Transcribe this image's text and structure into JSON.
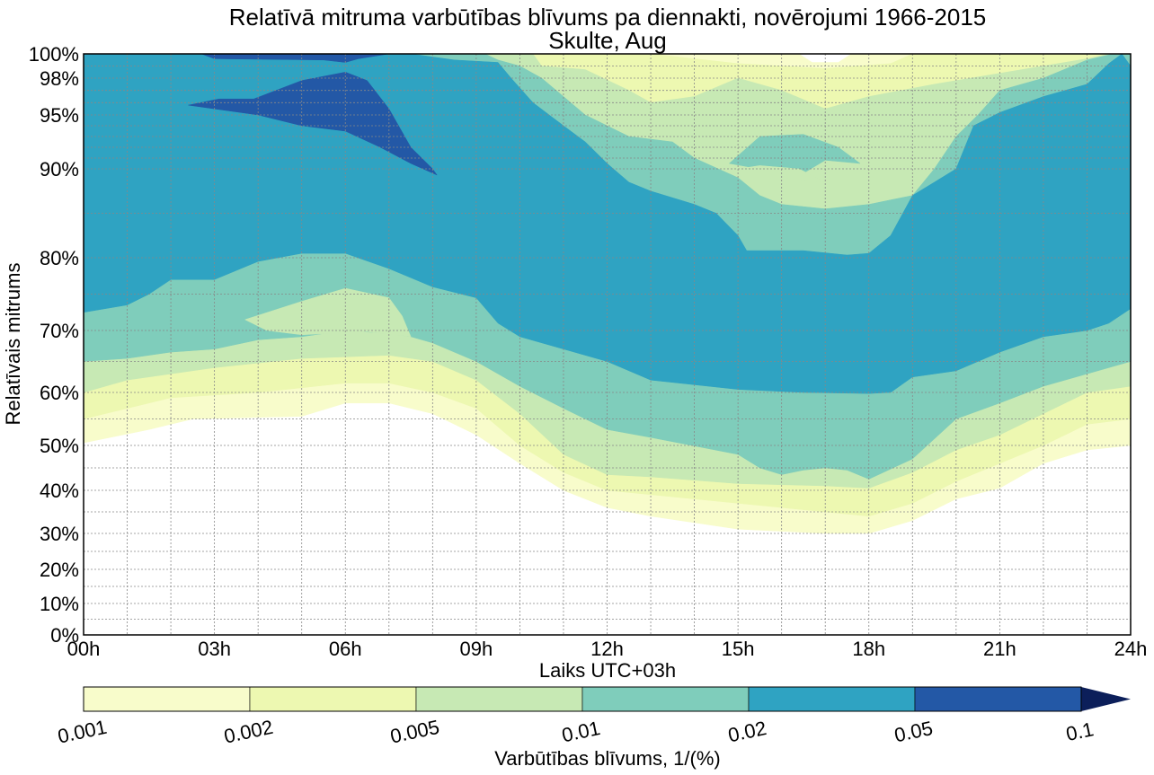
{
  "chart_data": {
    "type": "contourf",
    "title": "Relatīvā mitruma varbūtības blīvums pa diennakti, novērojumi 1966-2015",
    "subtitle": "Skulte, Aug",
    "xlabel": "Laiks UTC+03h",
    "ylabel": "Relatīvais mitrums",
    "xlim": [
      0,
      24
    ],
    "ylim": [
      0,
      100
    ],
    "x_ticks": [
      {
        "value": 0,
        "label": "00h"
      },
      {
        "value": 3,
        "label": "03h"
      },
      {
        "value": 6,
        "label": "06h"
      },
      {
        "value": 9,
        "label": "09h"
      },
      {
        "value": 12,
        "label": "12h"
      },
      {
        "value": 15,
        "label": "15h"
      },
      {
        "value": 18,
        "label": "18h"
      },
      {
        "value": 21,
        "label": "21h"
      },
      {
        "value": 24,
        "label": "24h"
      }
    ],
    "y_ticks": [
      {
        "value": 0,
        "label": "0%"
      },
      {
        "value": 10,
        "label": "10%"
      },
      {
        "value": 20,
        "label": "20%"
      },
      {
        "value": 30,
        "label": "30%"
      },
      {
        "value": 40,
        "label": "40%"
      },
      {
        "value": 50,
        "label": "50%"
      },
      {
        "value": 60,
        "label": "60%"
      },
      {
        "value": 70,
        "label": "70%"
      },
      {
        "value": 80,
        "label": "80%"
      },
      {
        "value": 90,
        "label": "90%"
      },
      {
        "value": 95,
        "label": "95%"
      },
      {
        "value": 98,
        "label": "98%"
      },
      {
        "value": 100,
        "label": "100%"
      }
    ],
    "grid": true,
    "colorbar": {
      "label": "Varbūtības blīvums, 1/(%)",
      "levels": [
        "0.001",
        "0.002",
        "0.005",
        "0.01",
        "0.02",
        "0.05",
        "0.1"
      ],
      "colors": [
        "#f8fccb",
        "#edf8b1",
        "#c7e9b4",
        "#7fcdbb",
        "#2fa3c2",
        "#2358a6"
      ],
      "extend_color": "#0c1f5a",
      "placement": "bottom"
    },
    "regions": [
      {
        "level": 0,
        "points": [
          [
            0,
            50.5
          ],
          [
            1.5,
            53
          ],
          [
            2.5,
            55
          ],
          [
            5,
            55.5
          ],
          [
            6,
            58
          ],
          [
            7,
            58
          ],
          [
            8,
            56
          ],
          [
            9,
            52
          ],
          [
            10,
            46
          ],
          [
            11,
            40
          ],
          [
            12,
            36
          ],
          [
            13,
            34
          ],
          [
            15,
            31
          ],
          [
            17,
            30
          ],
          [
            18,
            30
          ],
          [
            19,
            33
          ],
          [
            20,
            38
          ],
          [
            21,
            40.5
          ],
          [
            22,
            46
          ],
          [
            23,
            49
          ],
          [
            24,
            50
          ],
          [
            24,
            100
          ],
          [
            17.6,
            100
          ],
          [
            17.3,
            99.3
          ],
          [
            16.7,
            99.3
          ],
          [
            16.4,
            100
          ],
          [
            0,
            100
          ]
        ]
      },
      {
        "level": 1,
        "points": [
          [
            0,
            55
          ],
          [
            1,
            57
          ],
          [
            2,
            59
          ],
          [
            4,
            60
          ],
          [
            6,
            61.5
          ],
          [
            7,
            61.5
          ],
          [
            8,
            60
          ],
          [
            9,
            57
          ],
          [
            10,
            50
          ],
          [
            11,
            44
          ],
          [
            12,
            40
          ],
          [
            13,
            39
          ],
          [
            15,
            37
          ],
          [
            17,
            35
          ],
          [
            18,
            34
          ],
          [
            19,
            37
          ],
          [
            20,
            42
          ],
          [
            21,
            46
          ],
          [
            22,
            50
          ],
          [
            23,
            54
          ],
          [
            24,
            55
          ],
          [
            24,
            100
          ],
          [
            19,
            100
          ],
          [
            18.5,
            99.2
          ],
          [
            17,
            98.8
          ],
          [
            15,
            99.2
          ],
          [
            13,
            100
          ],
          [
            0,
            100
          ]
        ]
      },
      {
        "level": 2,
        "points": [
          [
            0,
            60
          ],
          [
            1,
            62
          ],
          [
            3,
            64
          ],
          [
            5,
            65.5
          ],
          [
            7,
            66
          ],
          [
            8,
            65
          ],
          [
            9,
            62
          ],
          [
            10,
            56
          ],
          [
            11,
            48
          ],
          [
            12,
            43.5
          ],
          [
            13,
            43
          ],
          [
            15,
            41.5
          ],
          [
            17,
            41
          ],
          [
            18,
            40.5
          ],
          [
            19,
            44
          ],
          [
            20,
            49
          ],
          [
            21,
            52
          ],
          [
            22,
            56
          ],
          [
            23,
            60
          ],
          [
            24,
            61
          ],
          [
            24,
            100
          ],
          [
            23.5,
            100
          ],
          [
            23,
            99.6
          ],
          [
            22,
            99
          ],
          [
            19.5,
            97.5
          ],
          [
            18,
            96.5
          ],
          [
            17,
            95.5
          ],
          [
            16,
            97
          ],
          [
            15,
            98
          ],
          [
            14,
            96.5
          ],
          [
            13,
            96
          ],
          [
            12.5,
            97
          ],
          [
            11.5,
            98.7
          ],
          [
            10.5,
            99
          ],
          [
            10.3,
            100
          ],
          [
            0,
            100
          ]
        ]
      },
      {
        "level": 3,
        "points": [
          [
            0,
            65
          ],
          [
            1,
            65.5
          ],
          [
            2,
            66.5
          ],
          [
            3,
            67
          ],
          [
            4,
            68.5
          ],
          [
            5,
            69
          ],
          [
            6,
            70
          ],
          [
            7,
            69.5
          ],
          [
            7.5,
            69
          ],
          [
            8,
            68
          ],
          [
            9,
            65
          ],
          [
            10,
            61
          ],
          [
            11,
            57
          ],
          [
            12,
            53
          ],
          [
            13,
            51.5
          ],
          [
            15,
            48
          ],
          [
            15.5,
            45
          ],
          [
            16,
            43.5
          ],
          [
            16.5,
            44.5
          ],
          [
            17,
            45
          ],
          [
            17.5,
            44.5
          ],
          [
            18,
            42.5
          ],
          [
            19,
            47
          ],
          [
            20,
            55
          ],
          [
            21,
            58
          ],
          [
            22,
            61
          ],
          [
            23,
            63
          ],
          [
            24,
            65
          ],
          [
            24,
            100
          ],
          [
            23.6,
            100
          ],
          [
            23,
            99.5
          ],
          [
            22,
            98
          ],
          [
            21,
            97
          ],
          [
            20.5,
            95
          ],
          [
            20,
            93
          ],
          [
            19.5,
            90
          ],
          [
            19,
            87
          ],
          [
            18.5,
            86.5
          ],
          [
            18,
            86
          ],
          [
            17,
            85.5
          ],
          [
            16,
            86
          ],
          [
            15.5,
            87
          ],
          [
            15,
            89
          ],
          [
            14,
            91
          ],
          [
            13.5,
            92.5
          ],
          [
            12.5,
            93
          ],
          [
            12,
            94
          ],
          [
            11.5,
            95
          ],
          [
            11,
            96.5
          ],
          [
            10.5,
            98
          ],
          [
            10,
            99
          ],
          [
            9.5,
            99.5
          ],
          [
            9.2,
            100
          ],
          [
            0,
            100
          ]
        ]
      },
      {
        "level": 2,
        "points": [
          [
            3.7,
            71.5
          ],
          [
            5,
            74
          ],
          [
            6,
            75.8
          ],
          [
            7,
            74.5
          ],
          [
            7.3,
            72
          ],
          [
            7.5,
            69
          ],
          [
            6.5,
            69.8
          ],
          [
            5,
            69.3
          ],
          [
            4.2,
            70
          ]
        ]
      },
      {
        "level": 3,
        "points": [
          [
            14.8,
            90.5
          ],
          [
            15.5,
            93
          ],
          [
            16.5,
            93.2
          ],
          [
            17.3,
            92
          ],
          [
            17.8,
            90.5
          ],
          [
            17,
            90.8
          ],
          [
            16.5,
            89.5
          ],
          [
            15.5,
            90
          ]
        ]
      },
      {
        "level": 2,
        "points": [
          [
            15,
            90
          ],
          [
            16,
            89
          ],
          [
            17,
            88.5
          ],
          [
            16.4,
            90
          ],
          [
            15.5,
            90.3
          ]
        ]
      },
      {
        "level": 4,
        "points": [
          [
            0,
            72.5
          ],
          [
            1,
            73.5
          ],
          [
            1.5,
            75
          ],
          [
            2,
            77
          ],
          [
            3,
            77
          ],
          [
            4,
            79.5
          ],
          [
            5,
            80.5
          ],
          [
            6,
            80.5
          ],
          [
            7,
            78.5
          ],
          [
            8,
            76
          ],
          [
            9,
            74.5
          ],
          [
            9.5,
            71
          ],
          [
            10,
            69
          ],
          [
            11,
            67
          ],
          [
            12,
            65
          ],
          [
            13,
            62
          ],
          [
            15,
            60.5
          ],
          [
            16.5,
            60
          ],
          [
            18,
            59.8
          ],
          [
            18.5,
            60
          ],
          [
            19,
            62.5
          ],
          [
            20,
            63.5
          ],
          [
            21,
            66.5
          ],
          [
            22,
            69
          ],
          [
            23,
            70
          ],
          [
            23.5,
            71
          ],
          [
            24,
            73
          ],
          [
            24,
            99
          ],
          [
            23.8,
            100
          ],
          [
            23.5,
            99.2
          ],
          [
            23,
            97.5
          ],
          [
            22,
            96.5
          ],
          [
            21,
            95.2
          ],
          [
            20.4,
            94
          ],
          [
            20.2,
            92
          ],
          [
            20,
            90
          ],
          [
            19.5,
            88.5
          ],
          [
            19,
            87
          ],
          [
            18.5,
            82.5
          ],
          [
            18,
            80.5
          ],
          [
            17.5,
            80.3
          ],
          [
            16.5,
            80.8
          ],
          [
            15.2,
            80.8
          ],
          [
            15,
            82.5
          ],
          [
            14.5,
            85
          ],
          [
            14,
            86
          ],
          [
            13,
            87.5
          ],
          [
            12.5,
            88.5
          ],
          [
            12,
            90.5
          ],
          [
            11.5,
            92.5
          ],
          [
            11,
            94
          ],
          [
            10.3,
            96
          ],
          [
            9.8,
            98
          ],
          [
            9.5,
            99.3
          ],
          [
            8.5,
            99.5
          ],
          [
            7.5,
            100
          ],
          [
            0,
            100
          ]
        ]
      },
      {
        "level": 5,
        "points": [
          [
            2.4,
            95.8
          ],
          [
            3.1,
            96.3
          ],
          [
            3.9,
            96.3
          ],
          [
            5,
            97.8
          ],
          [
            6,
            98.5
          ],
          [
            6.5,
            97.8
          ],
          [
            7,
            95.5
          ],
          [
            7.5,
            92
          ],
          [
            8,
            90
          ],
          [
            8.1,
            89.3
          ],
          [
            7.5,
            90.5
          ],
          [
            6.8,
            92
          ],
          [
            6,
            93.5
          ],
          [
            5,
            94
          ],
          [
            4,
            95
          ],
          [
            3,
            95.5
          ]
        ]
      },
      {
        "level": 5,
        "points": [
          [
            2.7,
            100
          ],
          [
            3,
            99.6
          ],
          [
            5.5,
            99.5
          ],
          [
            6,
            99.3
          ],
          [
            6.3,
            99.6
          ],
          [
            7,
            100
          ]
        ]
      }
    ]
  }
}
